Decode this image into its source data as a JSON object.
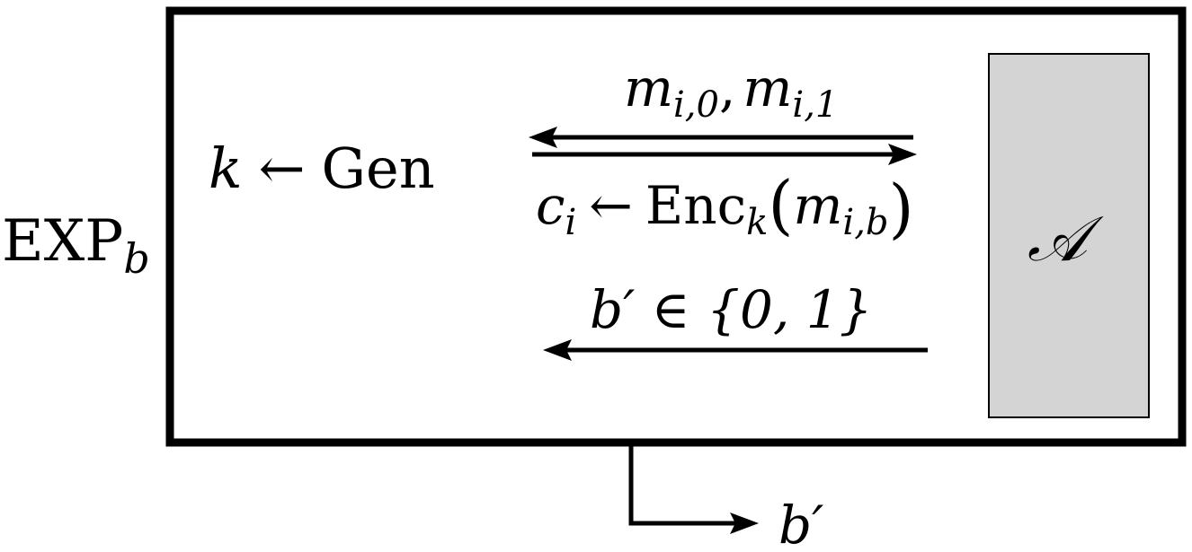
{
  "experiment": {
    "name": "EXP",
    "subscript": "b"
  },
  "challenger": {
    "key_var": "k",
    "key_arrow": "←",
    "key_alg": "Gen"
  },
  "messages": {
    "m_sym": "m",
    "sub_i0": "i,0",
    "comma": ",",
    "sub_i1": "i,1"
  },
  "ciphertext": {
    "c_sym": "c",
    "c_sub": "i",
    "arrow": "←",
    "alg": "Enc",
    "alg_sub": "k",
    "lparen": "(",
    "m_sym": "m",
    "m_sub": "i,b",
    "rparen": ")"
  },
  "guess": {
    "label": "b′ ∈ {0, 1}"
  },
  "adversary": {
    "symbol": "𝒜",
    "fill": "#d4d4d4"
  },
  "output": {
    "label": "b′"
  }
}
